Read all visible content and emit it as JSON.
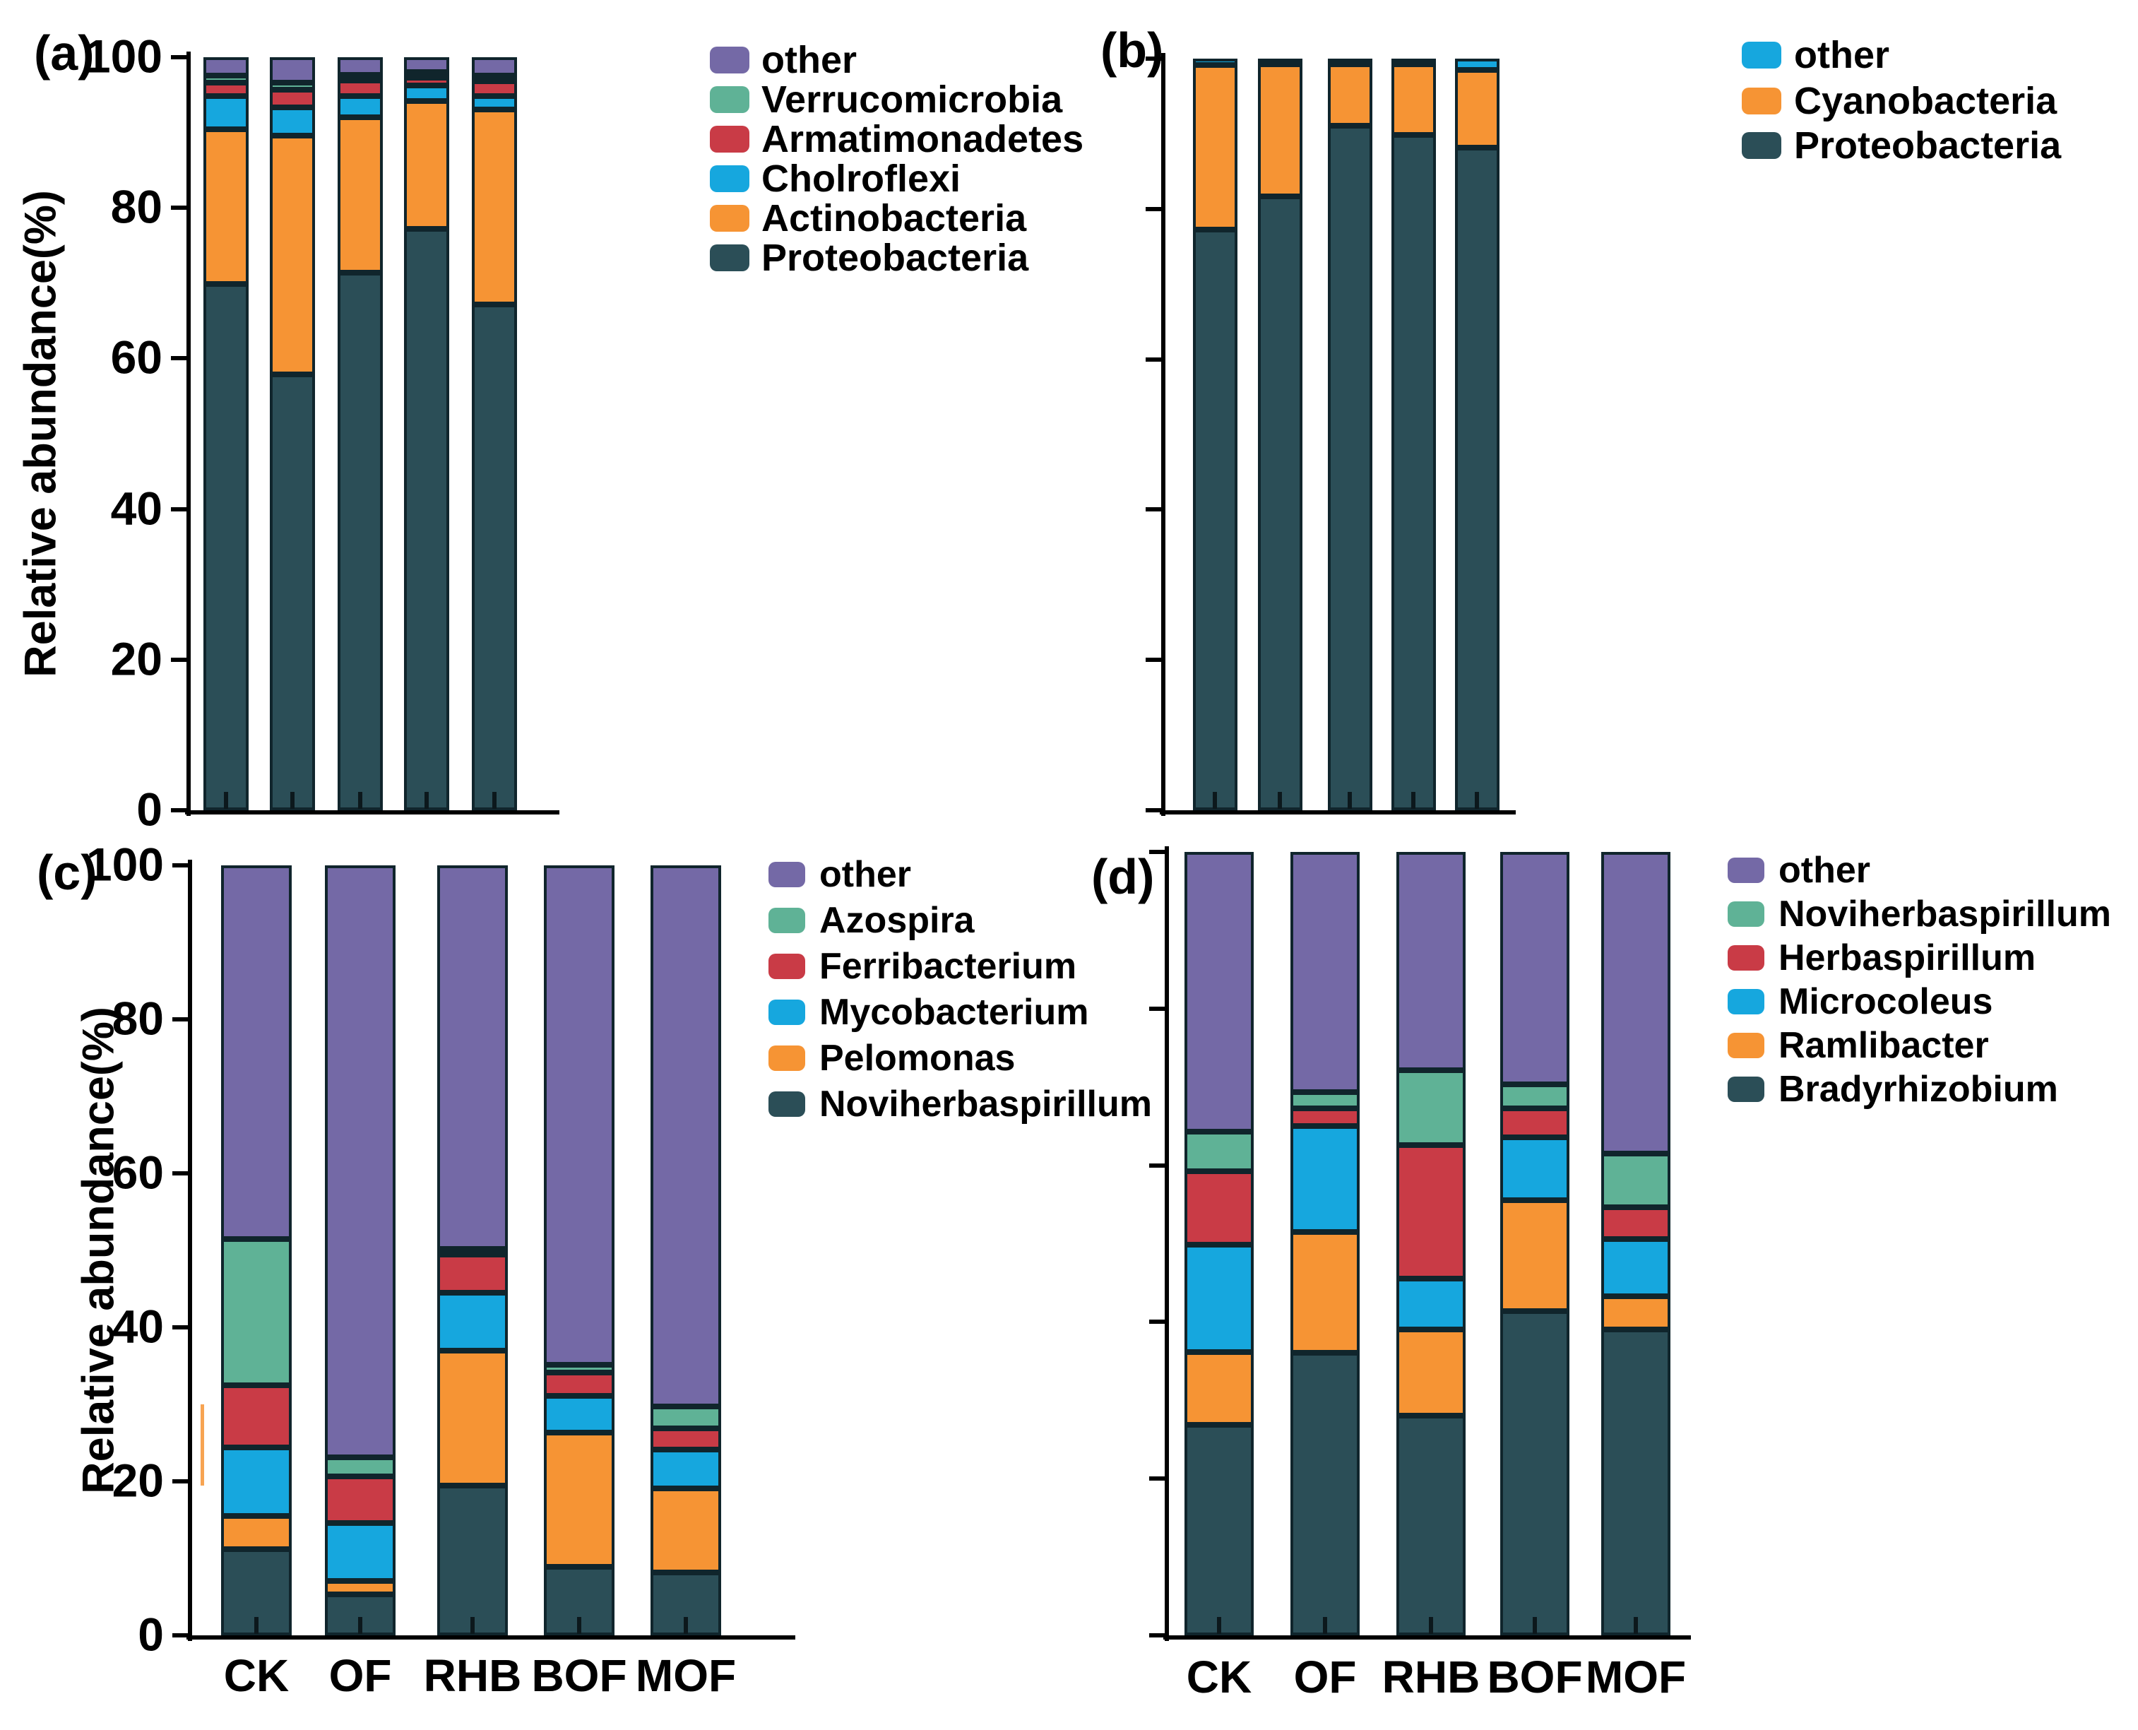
{
  "figure": {
    "background": "#ffffff",
    "x_category_labels": [
      "CK",
      "OF",
      "RHB",
      "BOF",
      "MOF"
    ],
    "accent_colors": {
      "purple": "#7469A6",
      "green": "#5FB296",
      "red": "#C93B46",
      "cyan": "#16A7DE",
      "orange": "#F69434",
      "dark_teal": "#2B4E57"
    }
  },
  "chart_data": [
    {
      "id": "a",
      "type": "bar",
      "stacked": true,
      "panel_label": "(a)",
      "ylabel": "Relative abundance(%)",
      "categories": [
        "CK",
        "OF",
        "RHB",
        "BOF",
        "MOF"
      ],
      "x_labels_visible": false,
      "ylim": [
        0,
        100
      ],
      "y_ticks": [
        0,
        20,
        40,
        60,
        80,
        100
      ],
      "y_tick_labels_visible": true,
      "grid": false,
      "legend_position": "right",
      "legend_order_top_to_bottom": [
        "other",
        "Verrucomicrobia",
        "Armatimonadetes",
        "Cholroflexi",
        "Actinobacteria",
        "Proteobacteria"
      ],
      "series": [
        {
          "name": "Proteobacteria",
          "color": "#2B4E57",
          "values": [
            69.9,
            57.9,
            71.4,
            77.2,
            67.3
          ]
        },
        {
          "name": "Actinobacteria",
          "color": "#F69434",
          "values": [
            20.5,
            31.7,
            20.7,
            17.0,
            26.0
          ]
        },
        {
          "name": "Cholroflexi",
          "color": "#16A7DE",
          "values": [
            4.4,
            3.7,
            2.8,
            2.1,
            1.8
          ]
        },
        {
          "name": "Armatimonadetes",
          "color": "#C93B46",
          "values": [
            1.8,
            2.4,
            2.1,
            1.0,
            2.0
          ]
        },
        {
          "name": "Verrucomicrobia",
          "color": "#5FB296",
          "values": [
            1.0,
            0.9,
            0.7,
            0.7,
            0.5
          ]
        },
        {
          "name": "other",
          "color": "#7469A6",
          "values": [
            2.4,
            3.4,
            2.3,
            2.0,
            2.4
          ]
        }
      ]
    },
    {
      "id": "b",
      "type": "bar",
      "stacked": true,
      "panel_label": "(b)",
      "ylabel": "",
      "categories": [
        "CK",
        "OF",
        "RHB",
        "BOF",
        "MOF"
      ],
      "x_labels_visible": false,
      "ylim": [
        0,
        100
      ],
      "y_ticks": [
        0,
        20,
        40,
        60,
        80,
        100
      ],
      "y_tick_labels_visible": false,
      "grid": false,
      "legend_position": "right",
      "legend_order_top_to_bottom": [
        "other",
        "Cyanobacteria",
        "Proteobacteria"
      ],
      "series": [
        {
          "name": "Proteobacteria",
          "color": "#2B4E57",
          "values": [
            77.3,
            81.9,
            91.3,
            90.1,
            88.2
          ]
        },
        {
          "name": "Cyanobacteria",
          "color": "#F69434",
          "values": [
            21.9,
            17.6,
            8.2,
            9.4,
            10.3
          ]
        },
        {
          "name": "other",
          "color": "#16A7DE",
          "values": [
            0.8,
            0.5,
            0.5,
            0.5,
            1.5
          ]
        }
      ]
    },
    {
      "id": "c",
      "type": "bar",
      "stacked": true,
      "panel_label": "(c)",
      "ylabel": "Relative abundance(%)",
      "categories": [
        "CK",
        "OF",
        "RHB",
        "BOF",
        "MOF"
      ],
      "x_labels_visible": true,
      "ylim": [
        0,
        100
      ],
      "y_ticks": [
        0,
        20,
        40,
        60,
        80,
        100
      ],
      "y_tick_labels_visible": true,
      "grid": false,
      "legend_position": "right",
      "legend_order_top_to_bottom": [
        "other",
        "Azospira",
        "Ferribacterium",
        "Mycobacterium",
        "Pelomonas",
        "Noviherbaspirillum"
      ],
      "series": [
        {
          "name": "Noviherbaspirillum",
          "color": "#2B4E57",
          "values": [
            11.2,
            5.3,
            19.5,
            8.9,
            8.2
          ]
        },
        {
          "name": "Pelomonas",
          "color": "#F69434",
          "values": [
            4.3,
            1.8,
            17.5,
            17.4,
            10.9
          ]
        },
        {
          "name": "Mycobacterium",
          "color": "#16A7DE",
          "values": [
            8.9,
            7.5,
            7.5,
            4.8,
            5.0
          ]
        },
        {
          "name": "Ferribacterium",
          "color": "#C93B46",
          "values": [
            8.1,
            6.0,
            5.0,
            3.0,
            2.8
          ]
        },
        {
          "name": "Azospira",
          "color": "#5FB296",
          "values": [
            19.0,
            2.5,
            0.7,
            1.0,
            2.8
          ]
        },
        {
          "name": "other",
          "color": "#7469A6",
          "values": [
            48.5,
            76.9,
            49.8,
            64.9,
            70.3
          ]
        }
      ]
    },
    {
      "id": "d",
      "type": "bar",
      "stacked": true,
      "panel_label": "(d)",
      "ylabel": "",
      "categories": [
        "CK",
        "OF",
        "RHB",
        "BOF",
        "MOF"
      ],
      "x_labels_visible": true,
      "ylim": [
        0,
        100
      ],
      "y_ticks": [
        0,
        20,
        40,
        60,
        80,
        100
      ],
      "y_tick_labels_visible": false,
      "grid": false,
      "legend_position": "right",
      "legend_order_top_to_bottom": [
        "other",
        "Noviherbaspirillum",
        "Herbaspirillum",
        "Microcoleus",
        "Ramlibacter",
        "Bradyrhizobium"
      ],
      "series": [
        {
          "name": "Bradyrhizobium",
          "color": "#2B4E57",
          "values": [
            26.9,
            36.1,
            28.0,
            41.4,
            39.0
          ]
        },
        {
          "name": "Ramlibacter",
          "color": "#F69434",
          "values": [
            9.3,
            15.4,
            11.0,
            14.1,
            4.3
          ]
        },
        {
          "name": "Microcoleus",
          "color": "#16A7DE",
          "values": [
            13.7,
            13.5,
            6.5,
            8.1,
            7.3
          ]
        },
        {
          "name": "Herbaspirillum",
          "color": "#C93B46",
          "values": [
            9.3,
            2.3,
            17.1,
            3.7,
            4.0
          ]
        },
        {
          "name": "Noviherbaspirillum",
          "color": "#5FB296",
          "values": [
            5.1,
            2.0,
            9.5,
            3.0,
            6.9
          ]
        },
        {
          "name": "other",
          "color": "#7469A6",
          "values": [
            35.7,
            30.7,
            27.9,
            29.7,
            38.5
          ]
        }
      ]
    }
  ]
}
